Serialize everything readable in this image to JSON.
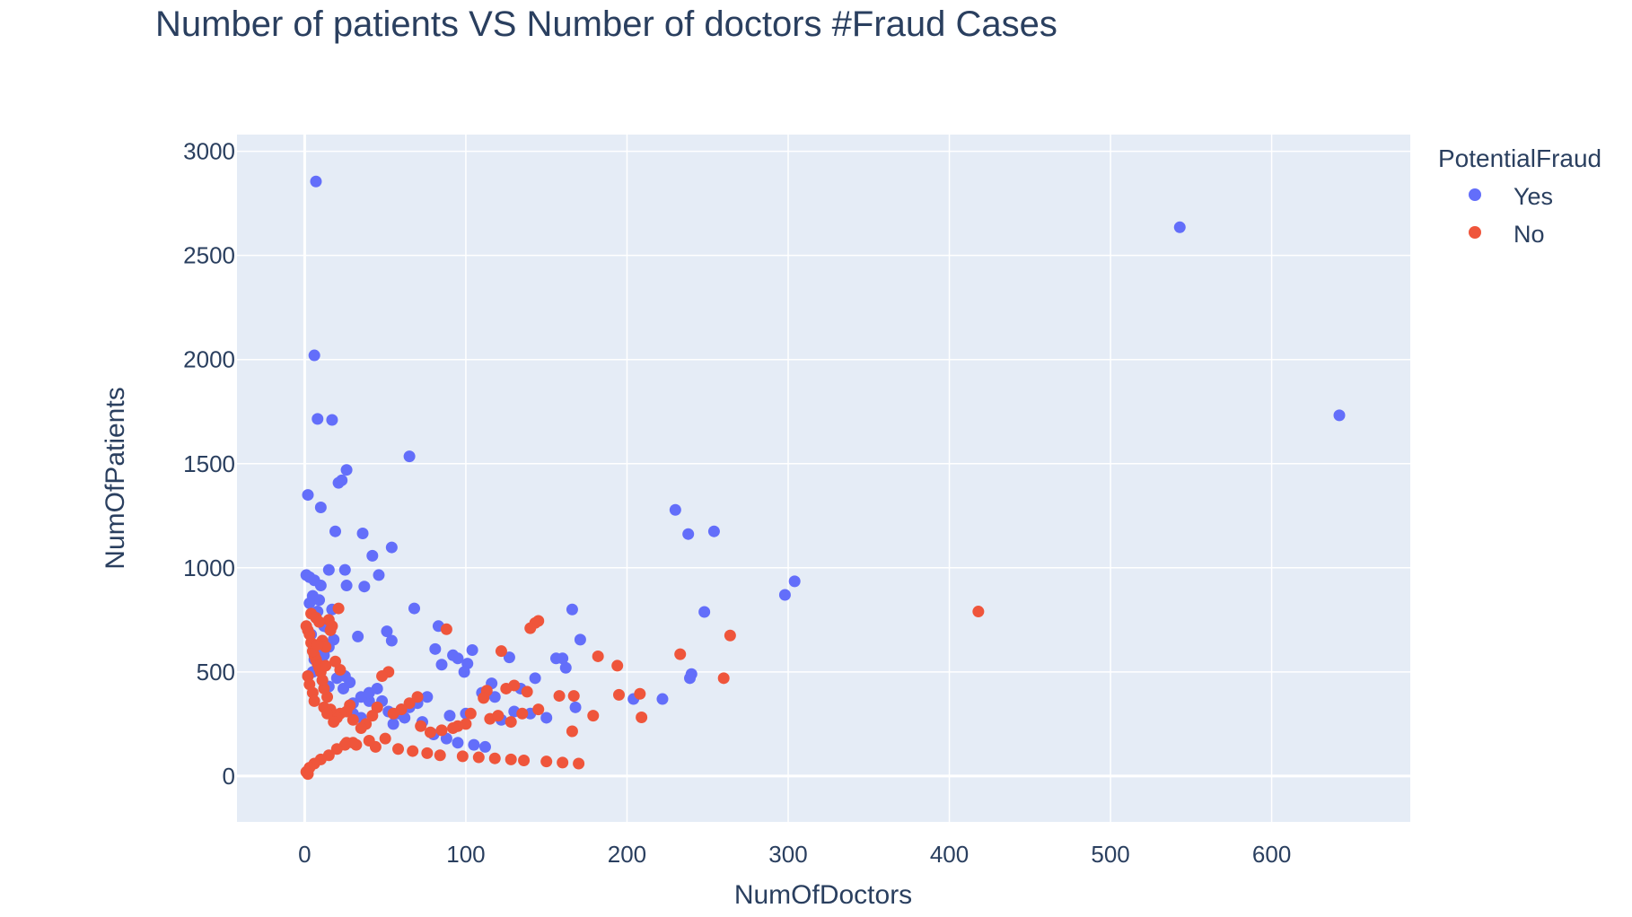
{
  "colors": {
    "yes": "#636efa",
    "no": "#ef553b",
    "plot_bg": "#e5ecf6",
    "grid": "#ffffff",
    "text": "#2a3f5f"
  },
  "chart_data": {
    "type": "scatter",
    "title": "Number of patients VS Number of doctors #Fraud Cases",
    "xlabel": "NumOfDoctors",
    "ylabel": "NumOfPatients",
    "xlim": [
      -42,
      686
    ],
    "ylim": [
      -220,
      3080
    ],
    "x_ticks": [
      0,
      100,
      200,
      300,
      400,
      500,
      600
    ],
    "y_ticks": [
      0,
      500,
      1000,
      1500,
      2000,
      2500,
      3000
    ],
    "x_tick_labels": [
      "0",
      "100",
      "200",
      "300",
      "400",
      "500",
      "600"
    ],
    "y_tick_labels": [
      "0",
      "500",
      "1000",
      "1500",
      "2000",
      "2500",
      "3000"
    ],
    "grid": true,
    "legend": {
      "title": "PotentialFraud",
      "placement": "top-right",
      "entries": [
        "Yes",
        "No"
      ]
    },
    "series": [
      {
        "name": "Yes",
        "color": "#636efa",
        "x": [
          7,
          6,
          8,
          17,
          65,
          26,
          23,
          21,
          2,
          10,
          36,
          19,
          54,
          42,
          1,
          3,
          15,
          25,
          46,
          6,
          10,
          37,
          26,
          5,
          9,
          3,
          17,
          8,
          14,
          68,
          166,
          12,
          4,
          18,
          15,
          8,
          12,
          6,
          33,
          51,
          54,
          83,
          171,
          104,
          81,
          92,
          95,
          101,
          156,
          162,
          127,
          85,
          99,
          160,
          143,
          116,
          134,
          204,
          222,
          110,
          118,
          130,
          140,
          150,
          168,
          122,
          90,
          100,
          70,
          60,
          45,
          40,
          76,
          55,
          30,
          35,
          65,
          52,
          24,
          28,
          2,
          5,
          8,
          11,
          15,
          20,
          25,
          30,
          35,
          40,
          45,
          48,
          58,
          62,
          73,
          80,
          88,
          95,
          105,
          112,
          543,
          642,
          230,
          238,
          254,
          304,
          298,
          248,
          240,
          239
        ],
        "y": [
          2855,
          2020,
          1715,
          1710,
          1535,
          1470,
          1420,
          1408,
          1350,
          1290,
          1165,
          1175,
          1098,
          1058,
          965,
          955,
          990,
          990,
          965,
          940,
          915,
          910,
          915,
          865,
          845,
          830,
          800,
          790,
          715,
          805,
          800,
          720,
          680,
          655,
          620,
          590,
          580,
          560,
          670,
          695,
          650,
          720,
          655,
          605,
          610,
          580,
          565,
          540,
          565,
          520,
          570,
          535,
          500,
          565,
          470,
          445,
          420,
          370,
          370,
          400,
          380,
          310,
          300,
          280,
          330,
          270,
          290,
          300,
          350,
          320,
          330,
          360,
          380,
          250,
          300,
          280,
          330,
          310,
          420,
          450,
          480,
          500,
          520,
          460,
          430,
          470,
          480,
          350,
          380,
          400,
          420,
          360,
          300,
          280,
          260,
          200,
          180,
          160,
          150,
          140,
          2635,
          1732,
          1278,
          1162,
          1175,
          935,
          870,
          788,
          490,
          470
        ]
      },
      {
        "name": "No",
        "color": "#ef553b",
        "x": [
          418,
          264,
          260,
          233,
          209,
          208,
          195,
          194,
          182,
          179,
          167,
          166,
          158,
          145,
          143,
          140,
          138,
          145,
          122,
          88,
          130,
          135,
          125,
          113,
          111,
          103,
          115,
          120,
          128,
          100,
          95,
          92,
          85,
          78,
          72,
          70,
          65,
          60,
          55,
          52,
          48,
          45,
          42,
          38,
          35,
          30,
          28,
          26,
          22,
          20,
          18,
          16,
          14,
          12,
          11,
          10,
          9,
          8,
          7,
          6,
          5,
          4,
          3,
          2,
          1,
          21,
          22,
          19,
          13,
          15,
          17,
          16,
          4,
          7,
          9,
          11,
          13,
          8,
          2,
          3,
          5,
          6,
          12,
          14,
          26,
          32,
          44,
          58,
          67,
          76,
          84,
          98,
          108,
          118,
          128,
          136,
          150,
          160,
          170,
          50,
          40,
          30,
          25,
          20,
          15,
          10,
          6,
          3,
          1,
          2
        ],
        "y": [
          790,
          675,
          470,
          585,
          282,
          395,
          390,
          530,
          575,
          290,
          385,
          215,
          385,
          745,
          735,
          710,
          405,
          320,
          600,
          705,
          435,
          300,
          420,
          410,
          375,
          300,
          275,
          290,
          260,
          250,
          240,
          230,
          220,
          210,
          240,
          380,
          350,
          320,
          300,
          500,
          480,
          330,
          290,
          250,
          230,
          270,
          340,
          310,
          300,
          280,
          260,
          320,
          380,
          420,
          460,
          500,
          520,
          540,
          560,
          580,
          600,
          640,
          680,
          700,
          720,
          805,
          510,
          550,
          530,
          750,
          720,
          700,
          780,
          760,
          740,
          650,
          620,
          630,
          480,
          440,
          400,
          360,
          330,
          300,
          160,
          150,
          140,
          130,
          120,
          110,
          100,
          95,
          90,
          85,
          80,
          75,
          70,
          65,
          60,
          180,
          170,
          160,
          150,
          130,
          100,
          80,
          60,
          40,
          20,
          10
        ]
      }
    ]
  }
}
